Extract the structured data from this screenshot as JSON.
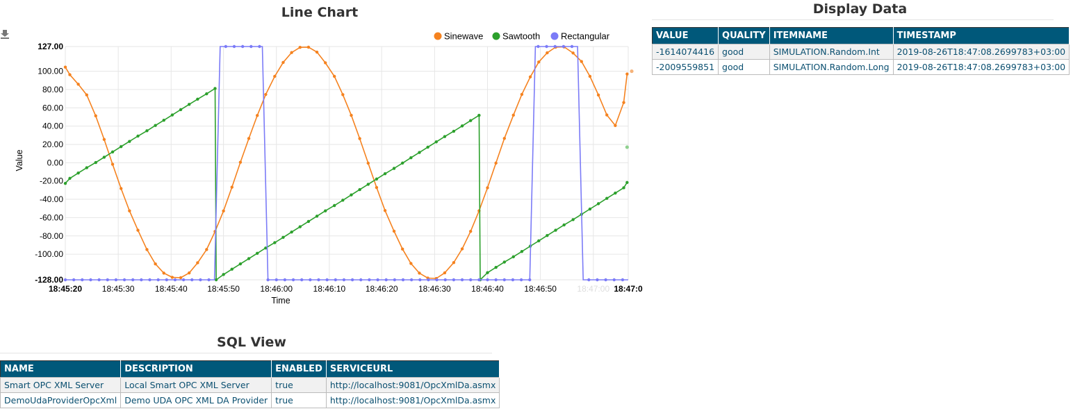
{
  "line_chart": {
    "title": "Line Chart",
    "download_icon": "download-icon"
  },
  "chart_data": {
    "type": "line",
    "title": "Line Chart",
    "xlabel": "Time",
    "ylabel": "Value",
    "x_range": [
      "18:45:20",
      "18:47:00"
    ],
    "ylim": [
      -128,
      127
    ],
    "y_ticks": [
      "127.00",
      "100.00",
      "80.00",
      "60.00",
      "40.00",
      "20.00",
      "0.00",
      "-20.00",
      "-40.00",
      "-60.00",
      "-80.00",
      "-100.00",
      "-128.00"
    ],
    "x_ticks": [
      "18:45:20",
      "18:45:30",
      "18:45:40",
      "18:45:50",
      "18:46:00",
      "18:46:10",
      "18:46:20",
      "18:46:30",
      "18:46:40",
      "18:46:50",
      "18:47:00",
      "18:47:0"
    ],
    "grid": true,
    "legend_position": "top-right",
    "series": [
      {
        "name": "Sinewave",
        "color": "#f5821f",
        "x": [
          0,
          0.8,
          2.3,
          3.8,
          5.4,
          6.9,
          8.4,
          9.9,
          11.4,
          12.9,
          14.5,
          16,
          17.5,
          19,
          20.5,
          22,
          23.5,
          25.1,
          26.6,
          28.1,
          29.6,
          31.1,
          32.6,
          34.1,
          35.6,
          37.2,
          38.7,
          40.2,
          41.7,
          43.2,
          44.7,
          46.2,
          47.8,
          49.3,
          50.8,
          52.3,
          53.8,
          55.3,
          56.8,
          58.4,
          59.9,
          61.4,
          62.9,
          64.4,
          65.9,
          67.4,
          69,
          70.5,
          72,
          73.5,
          75,
          76.5,
          78,
          79.6,
          81.1,
          82.6,
          84.1,
          85.6,
          87.1,
          88.6,
          90.2,
          91.7,
          93.2,
          94.7,
          96.2,
          97.7,
          99.2,
          99.8
        ],
        "values": [
          104.5,
          96.2,
          85.8,
          74.1,
          51.2,
          25.4,
          -1.7,
          -28.2,
          -52.6,
          -73.8,
          -94.9,
          -110.6,
          -120.7,
          -125.3,
          -125.7,
          -120.5,
          -109.4,
          -94.9,
          -75.1,
          -52.7,
          -26.7,
          0.5,
          26.5,
          51.6,
          74.6,
          94.4,
          109.6,
          120.4,
          126.1,
          126.3,
          120.9,
          109.2,
          94.4,
          74.4,
          51.8,
          26.4,
          -0.5,
          -27.1,
          -52.3,
          -74.8,
          -94.4,
          -110.1,
          -120.7,
          -126.1,
          -126.5,
          -120.4,
          -109.2,
          -94.2,
          -75,
          -52.5,
          -27.4,
          -0.4,
          26.6,
          52,
          74.7,
          93.8,
          110.1,
          120.1,
          126.3,
          126.6,
          119.9,
          110.6,
          94.4,
          74,
          52.2,
          40.6,
          65.8,
          97
        ]
      },
      {
        "name": "Sawtooth",
        "color": "#2ca02c",
        "x": [
          0,
          0.8,
          2.3,
          3.8,
          5.4,
          6.9,
          8.4,
          9.9,
          11.4,
          12.9,
          14.5,
          16,
          17.5,
          19,
          20.5,
          22,
          23.5,
          25.1,
          26.6,
          26.8,
          28.1,
          29.6,
          31.1,
          32.6,
          34.1,
          35.6,
          37.2,
          38.7,
          40.2,
          41.7,
          43.2,
          44.7,
          46.2,
          47.8,
          49.3,
          50.8,
          52.3,
          53.8,
          55.3,
          56.8,
          58.4,
          59.9,
          61.4,
          62.9,
          64.4,
          65.9,
          67.4,
          69,
          70.5,
          72,
          73.5,
          73.7,
          75,
          76.5,
          78,
          79.6,
          81.1,
          82.6,
          84.1,
          85.6,
          87.1,
          88.6,
          90.2,
          91.7,
          93.2,
          94.7,
          96.2,
          97.7,
          99.2,
          99.8
        ],
        "values": [
          -22.6,
          -17.1,
          -11.3,
          -5.5,
          0.2,
          6,
          11.8,
          17.6,
          23.3,
          29.1,
          34.9,
          40.7,
          46.4,
          52.2,
          58,
          63.8,
          69.5,
          75.3,
          81.1,
          -128,
          -122.2,
          -116.4,
          -110.6,
          -104.8,
          -99,
          -93.2,
          -87.4,
          -81.6,
          -75.8,
          -70,
          -64.2,
          -58.4,
          -52.6,
          -46.8,
          -41,
          -35.2,
          -29.4,
          -23.6,
          -17.8,
          -12,
          -6.2,
          -0.4,
          5.4,
          11.2,
          17,
          22.8,
          28.6,
          34.4,
          40.2,
          46,
          51.8,
          -128,
          -120.2,
          -114.4,
          -108.6,
          -102.8,
          -97,
          -91.2,
          -85.4,
          -79.6,
          -73.8,
          -68,
          -62.2,
          -56.4,
          -50.6,
          -44.8,
          -39,
          -33.2,
          -27.4,
          -21.6
        ]
      },
      {
        "name": "Rectangular",
        "color": "#7b7bf7",
        "x": [
          0,
          100
        ],
        "values": [
          -128,
          -128
        ],
        "segments": [
          {
            "from": 27.5,
            "to": 35.0,
            "value": 127
          },
          {
            "from": 83.5,
            "to": 91.0,
            "value": 127
          }
        ]
      }
    ]
  },
  "display_data": {
    "title": "Display Data",
    "columns": [
      "VALUE",
      "QUALITY",
      "ITEMNAME",
      "TIMESTAMP"
    ],
    "rows": [
      [
        "-1614074416",
        "good",
        "SIMULATION.Random.Int",
        "2019-08-26T18:47:08.2699783+03:00"
      ],
      [
        "-2009559851",
        "good",
        "SIMULATION.Random.Long",
        "2019-08-26T18:47:08.2699783+03:00"
      ]
    ]
  },
  "sql_view": {
    "title": "SQL View",
    "columns": [
      "NAME",
      "DESCRIPTION",
      "ENABLED",
      "SERVICEURL"
    ],
    "rows": [
      [
        "Smart OPC XML Server",
        "Local Smart OPC XML Server",
        "true",
        "http://localhost:9081/OpcXmlDa.asmx"
      ],
      [
        "DemoUdaProviderOpcXml",
        "Demo UDA OPC XML DA Provider",
        "true",
        "http://localhost:9081/OpcXmlDa.asmx"
      ]
    ]
  }
}
